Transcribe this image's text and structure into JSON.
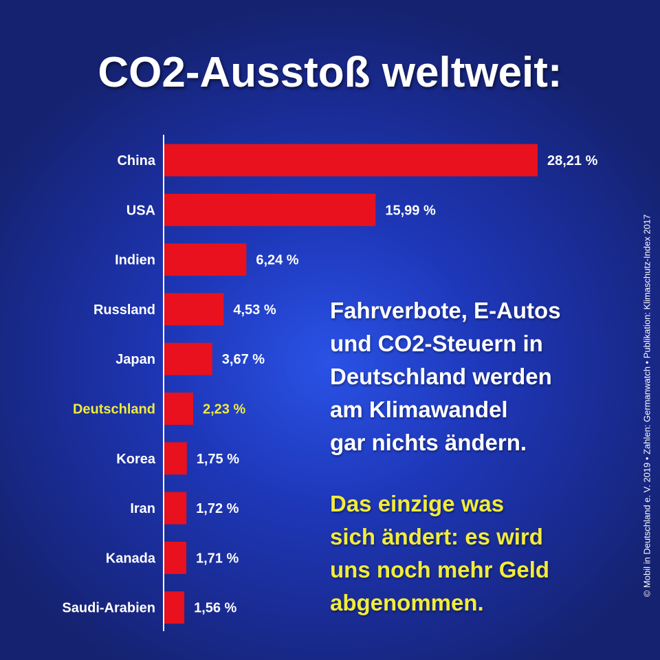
{
  "title": "CO2-Ausstoß weltweit:",
  "colors": {
    "bar": "#e8111d",
    "axis": "#ffffff",
    "label_default": "#ffffff",
    "label_highlight": "#f2ec3a"
  },
  "chart_data": {
    "type": "bar",
    "orientation": "horizontal",
    "title": "CO2-Ausstoß weltweit:",
    "categories": [
      "China",
      "USA",
      "Indien",
      "Russland",
      "Japan",
      "Deutschland",
      "Korea",
      "Iran",
      "Kanada",
      "Saudi-Arabien"
    ],
    "values": [
      28.21,
      15.99,
      6.24,
      4.53,
      3.67,
      2.23,
      1.75,
      1.72,
      1.71,
      1.56
    ],
    "value_labels": [
      "28,21 %",
      "15,99 %",
      "6,24 %",
      "4,53 %",
      "3,67 %",
      "2,23 %",
      "1,75 %",
      "1,72 %",
      "1,71 %",
      "1,56 %"
    ],
    "highlight": [
      "Deutschland"
    ],
    "xlim": [
      0,
      28.21
    ],
    "grid": false,
    "legend": "none"
  },
  "message_main": [
    "Fahrverbote, E-Autos",
    "und CO2-Steuern in",
    "Deutschland werden",
    "am Klimawandel",
    "gar nichts ändern."
  ],
  "message_highlight": [
    "Das einzige was",
    "sich ändert: es wird",
    "uns noch mehr Geld",
    "abgenommen."
  ],
  "credit": "© Mobil in Deutschland e. V. 2019  •  Zahlen: Germanwatch  •  Publikation: Klimaschutz-Index 2017"
}
